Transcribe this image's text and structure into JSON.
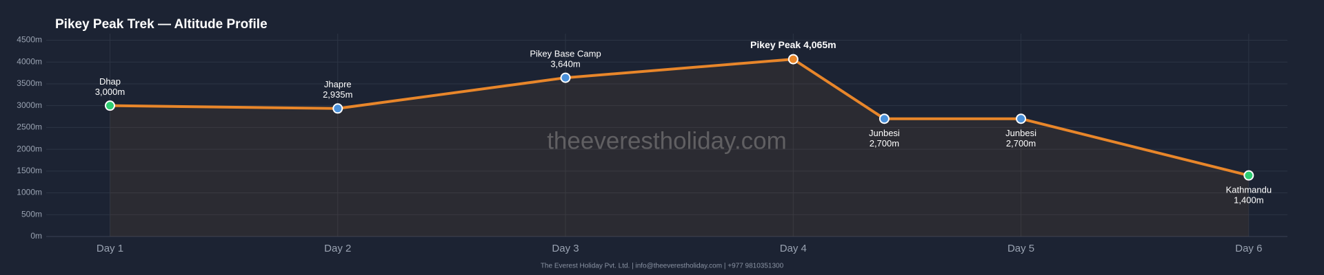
{
  "chart_data": {
    "type": "line",
    "title": "Pikey Peak Trek — Altitude Profile",
    "watermark": "theeverestholiday.com",
    "footer": "The Everest Holiday Pvt. Ltd. | info@theeverestholiday.com | +977 9810351300",
    "x": [
      1,
      2,
      3,
      4,
      4.4,
      5,
      6
    ],
    "point_names": [
      "Dhap",
      "Jhapre",
      "Pikey Base Camp",
      "Pikey Peak",
      "Junbesi",
      "Junbesi",
      "Kathmandu"
    ],
    "series": [
      {
        "name": "Altitude",
        "color": "#e8862a",
        "values": [
          3000,
          2935,
          3640,
          4065,
          2700,
          2700,
          1400
        ],
        "value_labels": [
          "3,000m",
          "2,935m",
          "3,640m",
          "4,065m",
          "2,700m",
          "2,700m",
          "1,400m"
        ],
        "point_colors": [
          "#2ecc71",
          "#4a90d9",
          "#4a90d9",
          "#e8862a",
          "#4a90d9",
          "#4a90d9",
          "#2ecc71"
        ]
      }
    ],
    "xlim": [
      0.72,
      6.17
    ],
    "xticks": [
      {
        "value": 1,
        "label": "Day 1"
      },
      {
        "value": 2,
        "label": "Day 2"
      },
      {
        "value": 3,
        "label": "Day 3"
      },
      {
        "value": 4,
        "label": "Day 4"
      },
      {
        "value": 5,
        "label": "Day 5"
      },
      {
        "value": 6,
        "label": "Day 6"
      }
    ],
    "ylim": [
      0,
      4650
    ],
    "yticks": [
      {
        "value": 0,
        "label": "0m"
      },
      {
        "value": 500,
        "label": "500m"
      },
      {
        "value": 1000,
        "label": "1000m"
      },
      {
        "value": 1500,
        "label": "1500m"
      },
      {
        "value": 2000,
        "label": "2000m"
      },
      {
        "value": 2500,
        "label": "2500m"
      },
      {
        "value": 3000,
        "label": "3000m"
      },
      {
        "value": 3500,
        "label": "3500m"
      },
      {
        "value": 4000,
        "label": "4000m"
      },
      {
        "value": 4500,
        "label": "4500m"
      }
    ],
    "grid": true
  }
}
